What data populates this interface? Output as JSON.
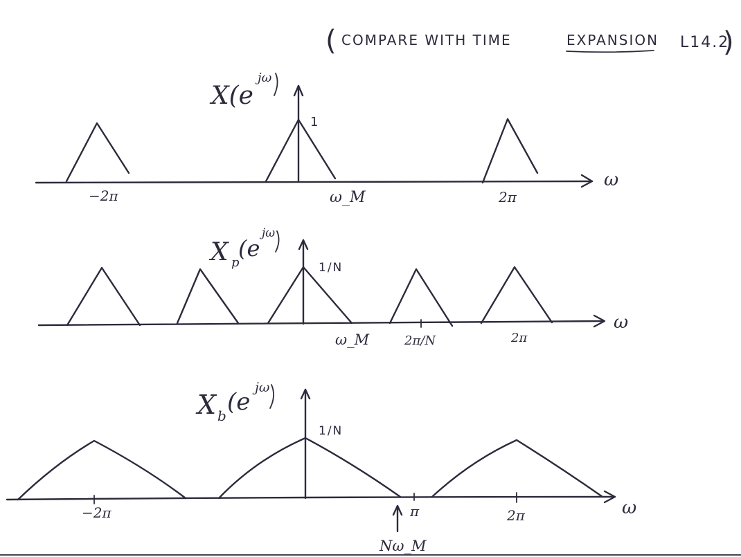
{
  "header": {
    "note_open": "(",
    "note_text_1": "COMPARE WITH TIME ",
    "note_text_2": "EXPANSION",
    "note_text_3": "L14.2",
    "note_close": ")"
  },
  "plots": [
    {
      "title": "X(e^{jω})",
      "title_main": "X(e",
      "title_sup": "jω",
      "title_close": ")",
      "peak_label": "1",
      "axis_var": "ω",
      "ticks": [
        "−2π",
        "ω_M",
        "2π"
      ]
    },
    {
      "title_main": "X",
      "title_sub": "p",
      "title_mid": "(e",
      "title_sup": "jω",
      "title_close": ")",
      "peak_label": "1/N",
      "axis_var": "ω",
      "ticks": [
        "ω_M",
        "2π/N",
        "2π"
      ]
    },
    {
      "title_main": "X",
      "title_sub": "b",
      "title_mid": "(e",
      "title_sup": "jω",
      "title_close": ")",
      "peak_label": "1/N",
      "axis_var": "ω",
      "ticks": [
        "−2π",
        "π",
        "2π"
      ],
      "marker_label": "Nω_M"
    }
  ]
}
